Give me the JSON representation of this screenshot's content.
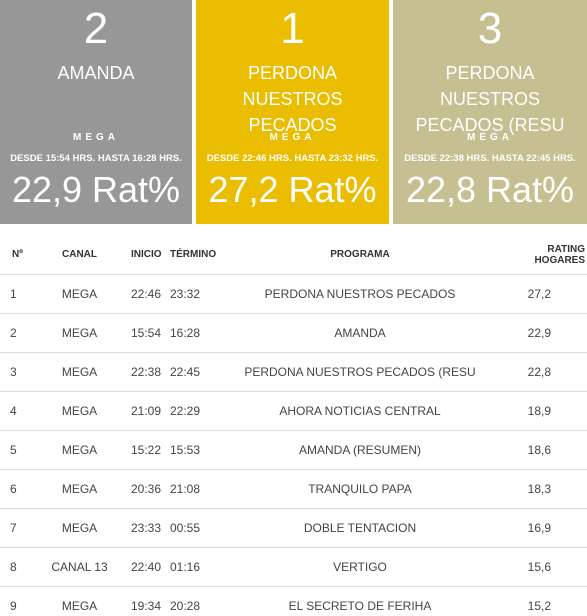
{
  "cards": [
    {
      "rank": "2",
      "title": "AMANDA",
      "channel": "MEGA",
      "time": "DESDE 15:54 HRS. HASTA 16:28 HRS.",
      "rating": "22,9 Rat%",
      "color": "#979797"
    },
    {
      "rank": "1",
      "title": "PERDONA NUESTROS PECADOS",
      "channel": "MEGA",
      "time": "DESDE 22:46 HRS. HASTA 23:32 HRS.",
      "rating": "27,2 Rat%",
      "color": "#ebbd00"
    },
    {
      "rank": "3",
      "title": "PERDONA NUESTROS PECADOS (RESU",
      "channel": "MEGA",
      "time": "DESDE 22:38 HRS. HASTA 22:45 HRS.",
      "rating": "22,8 Rat%",
      "color": "#c6bf91"
    }
  ],
  "table": {
    "headers": {
      "n": "Nº",
      "canal": "CANAL",
      "inicio": "INICIO",
      "termino": "TÉRMINO",
      "programa": "PROGRAMA",
      "rating": "RATING HOGARES"
    },
    "rows": [
      {
        "n": "1",
        "canal": "MEGA",
        "inicio": "22:46",
        "termino": "23:32",
        "programa": "PERDONA NUESTROS PECADOS",
        "rating": "27,2"
      },
      {
        "n": "2",
        "canal": "MEGA",
        "inicio": "15:54",
        "termino": "16:28",
        "programa": "AMANDA",
        "rating": "22,9"
      },
      {
        "n": "3",
        "canal": "MEGA",
        "inicio": "22:38",
        "termino": "22:45",
        "programa": "PERDONA NUESTROS PECADOS (RESU",
        "rating": "22,8"
      },
      {
        "n": "4",
        "canal": "MEGA",
        "inicio": "21:09",
        "termino": "22:29",
        "programa": "AHORA NOTICIAS CENTRAL",
        "rating": "18,9"
      },
      {
        "n": "5",
        "canal": "MEGA",
        "inicio": "15:22",
        "termino": "15:53",
        "programa": "AMANDA (RESUMEN)",
        "rating": "18,6"
      },
      {
        "n": "6",
        "canal": "MEGA",
        "inicio": "20:36",
        "termino": "21:08",
        "programa": "TRANQUILO PAPA",
        "rating": "18,3"
      },
      {
        "n": "7",
        "canal": "MEGA",
        "inicio": "23:33",
        "termino": "00:55",
        "programa": "DOBLE TENTACION",
        "rating": "16,9"
      },
      {
        "n": "8",
        "canal": "CANAL 13",
        "inicio": "22:40",
        "termino": "01:16",
        "programa": "VERTIGO",
        "rating": "15,6"
      },
      {
        "n": "9",
        "canal": "MEGA",
        "inicio": "19:34",
        "termino": "20:28",
        "programa": "EL SECRETO DE FERIHA",
        "rating": "15,2"
      }
    ]
  }
}
